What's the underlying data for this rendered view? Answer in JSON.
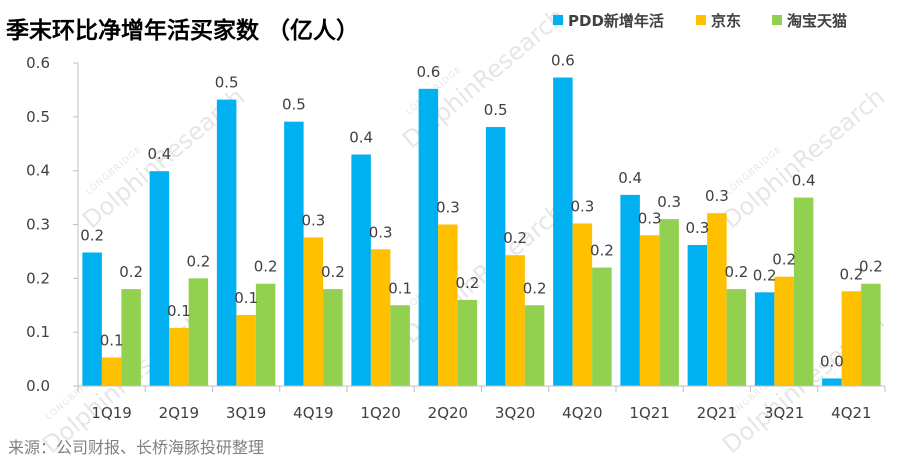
{
  "chart_data": {
    "type": "bar",
    "title": "季末环比净增年活买家数 （亿人）",
    "categories": [
      "1Q19",
      "2Q19",
      "3Q19",
      "4Q19",
      "1Q20",
      "2Q20",
      "3Q20",
      "4Q20",
      "1Q21",
      "2Q21",
      "3Q21",
      "4Q21"
    ],
    "series": [
      {
        "name": "PDD新增年活",
        "color": "#00b0f0",
        "values": [
          0.248,
          0.399,
          0.532,
          0.491,
          0.43,
          0.552,
          0.481,
          0.573,
          0.355,
          0.262,
          0.174,
          0.014
        ],
        "labels": [
          "0.2",
          "0.4",
          "0.5",
          "0.5",
          "0.4",
          "0.6",
          "0.5",
          "0.6",
          "0.4",
          "0.3",
          "0.2",
          "0.0"
        ]
      },
      {
        "name": "京东",
        "color": "#ffc000",
        "values": [
          0.053,
          0.108,
          0.132,
          0.276,
          0.254,
          0.3,
          0.243,
          0.302,
          0.28,
          0.321,
          0.203,
          0.176
        ],
        "labels": [
          "0.1",
          "0.1",
          "0.1",
          "0.3",
          "0.3",
          "0.3",
          "0.2",
          "0.3",
          "0.3",
          "0.3",
          "0.2",
          "0.2"
        ]
      },
      {
        "name": "淘宝天猫",
        "color": "#92d050",
        "values": [
          0.18,
          0.2,
          0.19,
          0.18,
          0.15,
          0.16,
          0.15,
          0.22,
          0.31,
          0.18,
          0.35,
          0.19
        ],
        "labels": [
          "0.2",
          "0.2",
          "0.2",
          "0.2",
          "0.1",
          "0.2",
          "0.2",
          "0.2",
          "0.3",
          "0.2",
          "0.4",
          "0.2"
        ]
      }
    ],
    "ylim": [
      0,
      0.6
    ],
    "yticks": [
      "0.0",
      "0.1",
      "0.2",
      "0.3",
      "0.4",
      "0.5",
      "0.6"
    ],
    "xlabel": "",
    "ylabel": "",
    "legend": "top-right",
    "grid": false
  },
  "source": "来源：公司财报、长桥海豚投研整理",
  "watermark": {
    "brand": "LONGBRIDGE",
    "name": "DolphinResearch"
  }
}
